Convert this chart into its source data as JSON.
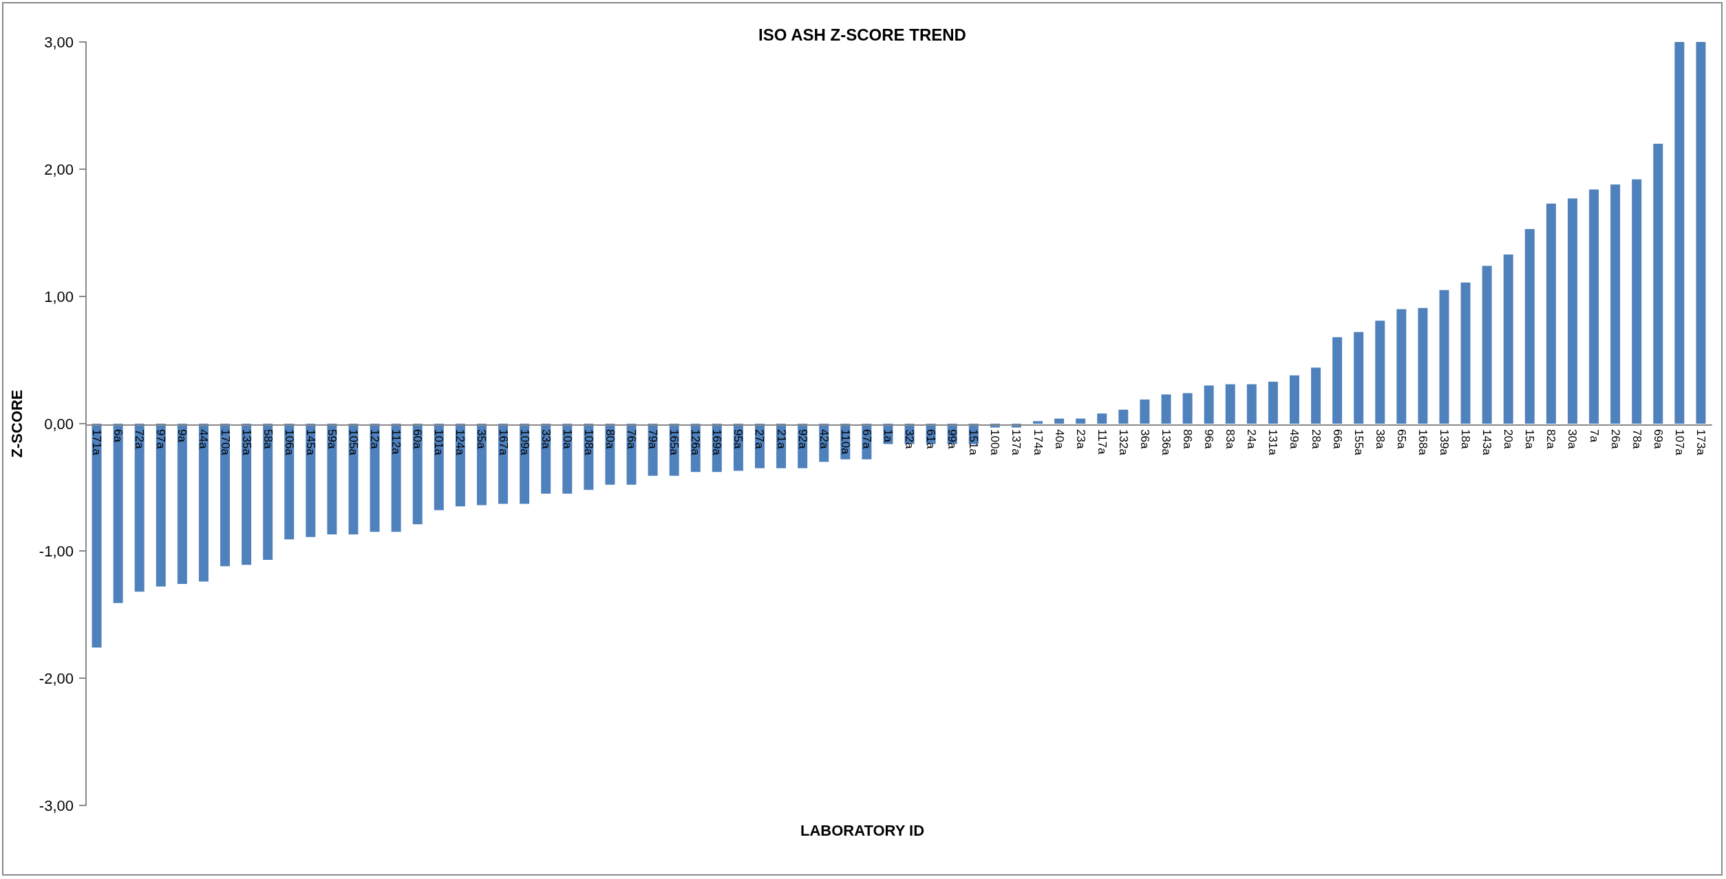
{
  "chart_data": {
    "type": "bar",
    "title": "ISO ASH Z-SCORE TREND",
    "xlabel": "LABORATORY ID",
    "ylabel": "Z-SCORE",
    "categories": [
      "171a",
      "6a",
      "72a",
      "97a",
      "9a",
      "44a",
      "170a",
      "135a",
      "58a",
      "106a",
      "145a",
      "59a",
      "105a",
      "12a",
      "112a",
      "60a",
      "101a",
      "124a",
      "35a",
      "167a",
      "109a",
      "33a",
      "10a",
      "108a",
      "80a",
      "76a",
      "79a",
      "165a",
      "126a",
      "169a",
      "95a",
      "27a",
      "21a",
      "92a",
      "42a",
      "110a",
      "67a",
      "1a",
      "32a",
      "61a",
      "99a",
      "151a",
      "100a",
      "137a",
      "174a",
      "40a",
      "23a",
      "117a",
      "132a",
      "36a",
      "136a",
      "86a",
      "96a",
      "83a",
      "24a",
      "131a",
      "49a",
      "28a",
      "66a",
      "155a",
      "38a",
      "65a",
      "168a",
      "139a",
      "18a",
      "143a",
      "20a",
      "15a",
      "82a",
      "30a",
      "7a",
      "26a",
      "78a",
      "69a",
      "107a",
      "173a"
    ],
    "values": [
      -1.76,
      -1.41,
      -1.32,
      -1.28,
      -1.26,
      -1.24,
      -1.12,
      -1.11,
      -1.07,
      -0.91,
      -0.89,
      -0.87,
      -0.87,
      -0.85,
      -0.85,
      -0.79,
      -0.68,
      -0.65,
      -0.64,
      -0.63,
      -0.63,
      -0.55,
      -0.55,
      -0.52,
      -0.48,
      -0.48,
      -0.41,
      -0.41,
      -0.38,
      -0.38,
      -0.37,
      -0.35,
      -0.35,
      -0.35,
      -0.3,
      -0.28,
      -0.28,
      -0.16,
      -0.16,
      -0.16,
      -0.16,
      -0.16,
      -0.03,
      -0.03,
      0.02,
      0.04,
      0.04,
      0.08,
      0.11,
      0.19,
      0.23,
      0.24,
      0.3,
      0.31,
      0.31,
      0.33,
      0.38,
      0.44,
      0.68,
      0.72,
      0.81,
      0.9,
      0.91,
      1.05,
      1.11,
      1.24,
      1.33,
      1.53,
      1.73,
      1.77,
      1.84,
      1.88,
      1.92,
      2.2,
      3.0,
      3.0
    ],
    "color": "#4f81bd",
    "ylim": [
      -3,
      3
    ],
    "yticks": [
      {
        "value": -3,
        "label": "-3,00"
      },
      {
        "value": -2,
        "label": "-2,00"
      },
      {
        "value": -1,
        "label": "-1,00"
      },
      {
        "value": 0,
        "label": "0,00"
      },
      {
        "value": 1,
        "label": "1,00"
      },
      {
        "value": 2,
        "label": "2,00"
      },
      {
        "value": 3,
        "label": "3,00"
      }
    ]
  }
}
